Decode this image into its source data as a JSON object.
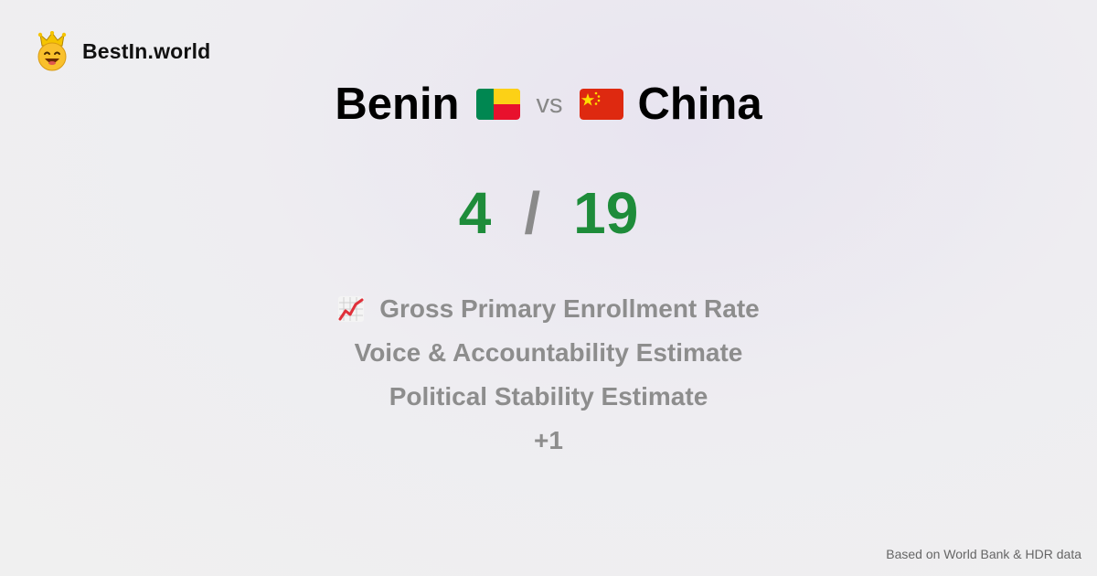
{
  "brand": {
    "name": "BestIn.world",
    "logo_icon": "smiling-crown-face-icon"
  },
  "title": {
    "left_country": "Benin",
    "left_flag": "benin-flag-icon",
    "vs": "vs",
    "right_country": "China",
    "right_flag": "china-flag-icon"
  },
  "score": {
    "left": "4",
    "separator": "/",
    "right": "19"
  },
  "metrics": [
    {
      "label": "Gross Primary Enrollment Rate",
      "icon": "chart-increasing-icon"
    },
    {
      "label": "Voice & Accountability Estimate"
    },
    {
      "label": "Political Stability Estimate"
    },
    {
      "label": "+1"
    }
  ],
  "footer": {
    "text": "Based on World Bank & HDR data"
  },
  "colors": {
    "score": "#1e8c3a",
    "muted": "#8d8d8d"
  }
}
